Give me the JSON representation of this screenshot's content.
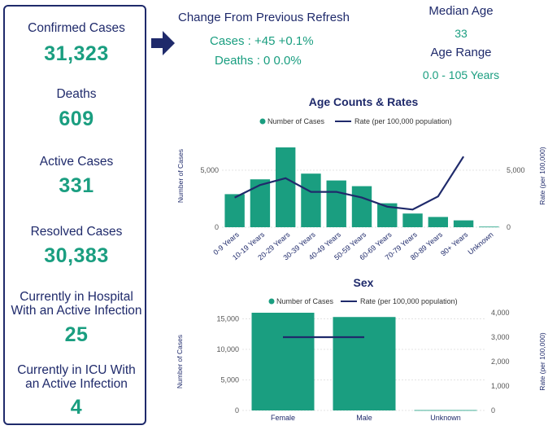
{
  "stats": {
    "confirmed_label": "Confirmed Cases",
    "confirmed_value": "31,323",
    "deaths_label": "Deaths",
    "deaths_value": "609",
    "active_label": "Active Cases",
    "active_value": "331",
    "resolved_label": "Resolved Cases",
    "resolved_value": "30,383",
    "hospital_label_line1": "Currently in Hospital",
    "hospital_label_line2": "With an Active Infection",
    "hospital_value": "25",
    "icu_label_line1": "Currently in ICU With",
    "icu_label_line2": "an Active Infection",
    "icu_value": "4"
  },
  "change": {
    "title": "Change From Previous Refresh",
    "cases_line": "Cases : +45 +0.1%",
    "deaths_line": "Deaths : 0 0.0%"
  },
  "age_summary": {
    "median_label": "Median Age",
    "median_value": "33",
    "range_label": "Age Range",
    "range_value": "0.0 - 105 Years"
  },
  "colors": {
    "bar": "#1a9e80",
    "line": "#1f2a6b",
    "navy": "#1f2a6b",
    "teal": "#1a9e80"
  },
  "icons": {
    "arrow": "arrow-right-icon"
  },
  "chart_data": [
    {
      "type": "bar",
      "title": "Age Counts & Rates",
      "categories": [
        "0-9 Years",
        "10-19 Years",
        "20-29 Years",
        "30-39 Years",
        "40-49 Years",
        "50-59 Years",
        "60-69 Years",
        "70-79 Years",
        "80-89 Years",
        "90+ Years",
        "Unknown"
      ],
      "series": [
        {
          "name": "Number of Cases",
          "type": "bar",
          "axis": "left",
          "values": [
            2900,
            4200,
            7000,
            4700,
            4100,
            3600,
            2100,
            1200,
            900,
            600,
            50
          ]
        },
        {
          "name": "Rate (per 100,000 population)",
          "type": "line",
          "axis": "right",
          "values": [
            2600,
            3700,
            4300,
            3100,
            3100,
            2600,
            1800,
            1550,
            2700,
            6200,
            null
          ]
        }
      ],
      "ylabel": "Number of Cases",
      "y2label": "Rate (per 100,000)",
      "ylim": [
        0,
        9000
      ],
      "y2lim": [
        0,
        9000
      ],
      "yticks": [
        0,
        5000
      ],
      "ytick_labels": [
        "0",
        "5,000"
      ],
      "y2ticks": [
        0,
        5000
      ],
      "y2tick_labels": [
        "0",
        "5,000"
      ],
      "legend": "top"
    },
    {
      "type": "bar",
      "title": "Sex",
      "categories": [
        "Female",
        "Male",
        "Unknown"
      ],
      "series": [
        {
          "name": "Number of Cases",
          "type": "bar",
          "axis": "left",
          "values": [
            16000,
            15300,
            60
          ]
        },
        {
          "name": "Rate (per 100,000 population)",
          "type": "line",
          "axis": "right",
          "values": [
            3000,
            3000,
            null
          ]
        }
      ],
      "ylabel": "Number of Cases",
      "y2label": "Rate (per 100,000)",
      "ylim": [
        0,
        16000
      ],
      "y2lim": [
        0,
        4000
      ],
      "yticks": [
        0,
        5000,
        10000,
        15000
      ],
      "ytick_labels": [
        "0",
        "5,000",
        "10,000",
        "15,000"
      ],
      "y2ticks": [
        0,
        1000,
        2000,
        3000,
        4000
      ],
      "y2tick_labels": [
        "0",
        "1,000",
        "2,000",
        "3,000",
        "4,000"
      ],
      "legend": "top"
    }
  ]
}
